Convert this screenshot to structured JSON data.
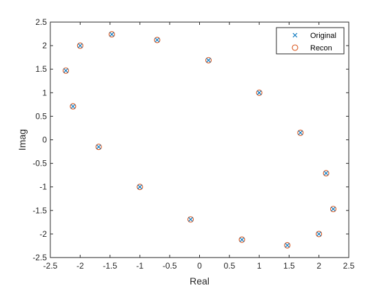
{
  "chart_data": {
    "type": "scatter",
    "xlabel": "Real",
    "ylabel": "Imag",
    "xlim": [
      -2.5,
      2.5
    ],
    "ylim": [
      -2.5,
      2.5
    ],
    "xticks": [
      -2.5,
      -2,
      -1.5,
      -1,
      -0.5,
      0,
      0.5,
      1,
      1.5,
      2,
      2.5
    ],
    "yticks": [
      -2.5,
      -2,
      -1.5,
      -1,
      -0.5,
      0,
      0.5,
      1,
      1.5,
      2,
      2.5
    ],
    "xtick_labels": [
      "-2.5",
      "-2",
      "-1.5",
      "-1",
      "-0.5",
      "0",
      "0.5",
      "1",
      "1.5",
      "2",
      "2.5"
    ],
    "ytick_labels": [
      "-2.5",
      "-2",
      "-1.5",
      "-1",
      "-0.5",
      "0",
      "0.5",
      "1",
      "1.5",
      "2",
      "2.5"
    ],
    "grid": false,
    "legend_position": "top-right",
    "points": [
      {
        "x": -1.47,
        "y": 2.24
      },
      {
        "x": -0.71,
        "y": 2.12
      },
      {
        "x": 0.15,
        "y": 1.69
      },
      {
        "x": 1.0,
        "y": 1.0
      },
      {
        "x": 1.69,
        "y": 0.15
      },
      {
        "x": 2.12,
        "y": -0.71
      },
      {
        "x": 2.24,
        "y": -1.47
      },
      {
        "x": 2.0,
        "y": -2.0
      },
      {
        "x": 1.47,
        "y": -2.24
      },
      {
        "x": 0.71,
        "y": -2.12
      },
      {
        "x": -0.15,
        "y": -1.69
      },
      {
        "x": -1.0,
        "y": -1.0
      },
      {
        "x": -1.69,
        "y": -0.15
      },
      {
        "x": -2.12,
        "y": 0.71
      },
      {
        "x": -2.24,
        "y": 1.47
      },
      {
        "x": -2.0,
        "y": 2.0
      }
    ],
    "series": [
      {
        "name": "Original",
        "marker": "x",
        "color": "#0072BD"
      },
      {
        "name": "Recon",
        "marker": "o",
        "color": "#D95319"
      }
    ]
  }
}
